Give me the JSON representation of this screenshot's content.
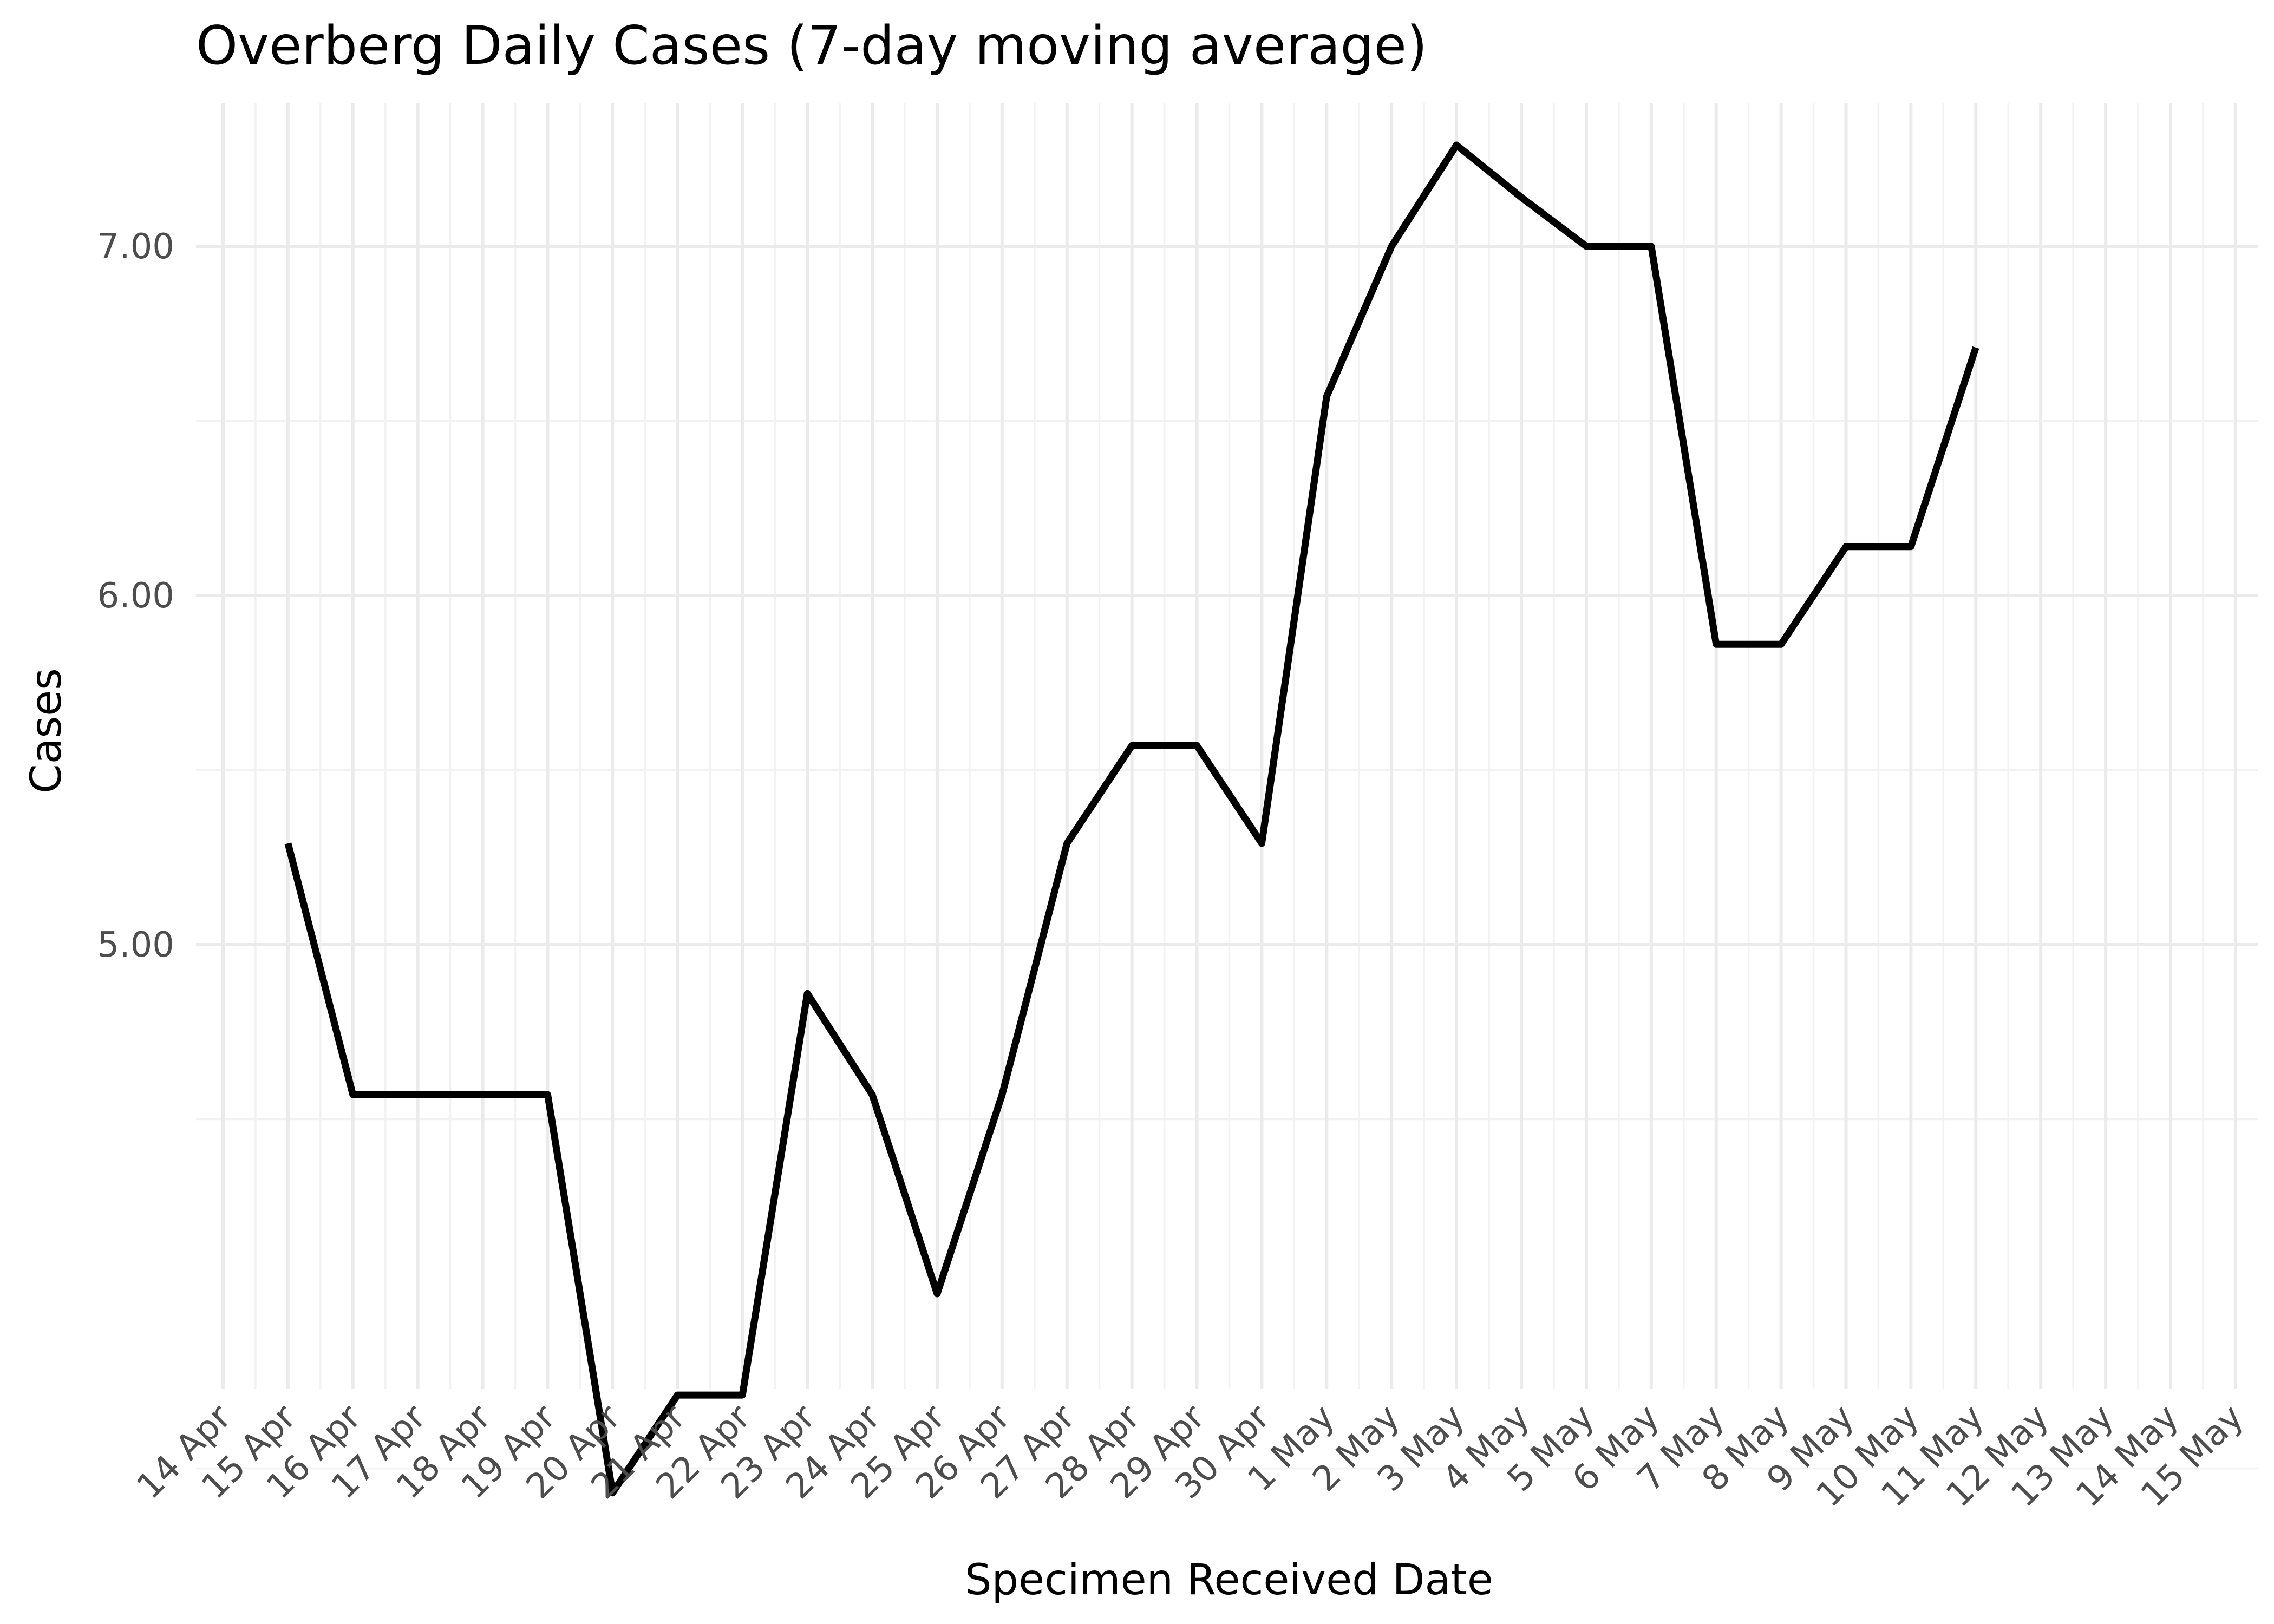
{
  "chart_data": {
    "type": "line",
    "title": "Overberg Daily Cases (7-day moving average)",
    "xlabel": "Specimen Received Date",
    "ylabel": "Cases",
    "x_ticks": [
      "14 Apr",
      "15 Apr",
      "16 Apr",
      "17 Apr",
      "18 Apr",
      "19 Apr",
      "20 Apr",
      "21 Apr",
      "22 Apr",
      "23 Apr",
      "24 Apr",
      "25 Apr",
      "26 Apr",
      "27 Apr",
      "28 Apr",
      "29 Apr",
      "30 Apr",
      "1 May",
      "2 May",
      "3 May",
      "4 May",
      "5 May",
      "6 May",
      "7 May",
      "8 May",
      "9 May",
      "10 May",
      "11 May",
      "12 May",
      "13 May",
      "14 May",
      "15 May"
    ],
    "y_ticks": [
      "5.00",
      "6.00",
      "7.00"
    ],
    "y_tick_values": [
      5,
      6,
      7
    ],
    "y_minor_values": [
      3.5,
      4.5,
      5.5,
      6.5
    ],
    "xlim": [
      "14 Apr",
      "15 May"
    ],
    "ylim": [
      3.31,
      7.5
    ],
    "grid": true,
    "legend": "none",
    "line_color": "#000000",
    "x": [
      "15 Apr",
      "16 Apr",
      "17 Apr",
      "18 Apr",
      "19 Apr",
      "20 Apr",
      "21 Apr",
      "22 Apr",
      "23 Apr",
      "24 Apr",
      "25 Apr",
      "26 Apr",
      "27 Apr",
      "28 Apr",
      "29 Apr",
      "30 Apr",
      "1 May",
      "2 May",
      "3 May",
      "4 May",
      "5 May",
      "6 May",
      "7 May",
      "8 May",
      "9 May",
      "10 May",
      "11 May"
    ],
    "values": [
      5.29,
      4.57,
      4.57,
      4.57,
      4.57,
      3.43,
      3.71,
      3.71,
      4.86,
      4.57,
      4.0,
      4.57,
      5.29,
      5.57,
      5.57,
      5.29,
      6.57,
      7.0,
      7.29,
      7.14,
      7.0,
      7.0,
      5.86,
      5.86,
      6.14,
      6.14,
      6.71
    ]
  }
}
